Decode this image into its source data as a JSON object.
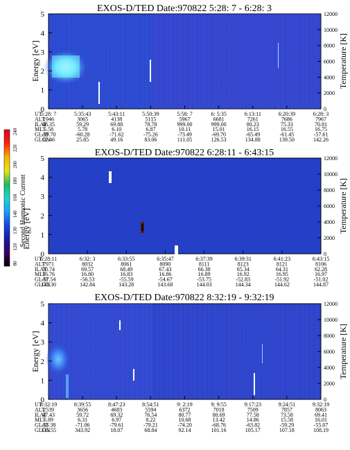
{
  "chart_data": [
    {
      "type": "heatmap",
      "title": "EXOS-D/TED   Date:970822  5:28: 7 - 6:28: 3",
      "ylabel": "Energy [eV]",
      "y2label": "Temperature [K]",
      "ylim": [
        0,
        5
      ],
      "y2lim": [
        0,
        12000
      ],
      "yticks": [
        "0",
        "1",
        "2",
        "3",
        "4",
        "5"
      ],
      "y2ticks": [
        "0",
        "2000",
        "4000",
        "6000",
        "8000",
        "10000",
        "12000"
      ],
      "xticks": [
        "5:28: 7",
        "5:35:43",
        "5:43:11",
        "5:50:39",
        "5:58: 7",
        "6: 5:35",
        "6:13:11",
        "6:20:39",
        "6:28: 3"
      ],
      "table_labels": [
        "UT",
        "ALT",
        "ILAT",
        "MLT",
        "GLAT",
        "GLON"
      ],
      "table": [
        [
          "5:28: 7",
          "5:35:43",
          "5:43:11",
          "5:50:39",
          "5:58: 7",
          "6: 5:35",
          "6:13:11",
          "6:20:39",
          "6:28: 3"
        ],
        [
          "1946",
          "3065",
          "4138",
          "5115",
          "5967",
          "6681",
          "7261",
          "7686",
          "7967"
        ],
        [
          "46.35",
          "59.29",
          "69.88",
          "78.78",
          "999.00",
          "999.00",
          "80.23",
          "75.33",
          "70.81"
        ],
        [
          "5.58",
          "5.78",
          "6.10",
          "6.87",
          "10.11",
          "15.01",
          "16.15",
          "16.55",
          "16.75"
        ],
        [
          "-39.70",
          "-60.28",
          "-71.62",
          "-75.26",
          "-73.49",
          "-69.70",
          "-65.49",
          "-61.45",
          "-57.61"
        ],
        [
          "12.46",
          "25.85",
          "49.16",
          "83.06",
          "111.05",
          "126.53",
          "134.88",
          "139.50",
          "142.26"
        ]
      ],
      "colors": {
        "background": "#2b4fd6",
        "band": "#6ee0ff",
        "streak": "#ffffff"
      }
    },
    {
      "type": "heatmap",
      "title": "EXOS-D/TED   Date:970822  6:28:11 - 6:43:15",
      "ylabel": "Energy [eV]",
      "y2label": "Temperature [K]",
      "ylim": [
        0,
        5
      ],
      "y2lim": [
        0,
        12000
      ],
      "yticks": [
        "0",
        "1",
        "2",
        "3",
        "4",
        "5"
      ],
      "y2ticks": [
        "0",
        "2000",
        "4000",
        "6000",
        "8000",
        "10000",
        "12000"
      ],
      "xticks": [
        "6:28:11",
        "6:32: 3",
        "6:33:55",
        "6:35:47",
        "6:37:39",
        "6:39:31",
        "6:41:23",
        "6:43:15"
      ],
      "table_labels": [
        "UT",
        "ALT",
        "ILAT",
        "MLT",
        "GLAT",
        "GLON"
      ],
      "table": [
        [
          "6:28:11",
          "6:32: 3",
          "6:33:55",
          "6:35:47",
          "6:37:39",
          "6:39:31",
          "6:41:23",
          "6:43:15"
        ],
        [
          "7971",
          "8032",
          "8061",
          "8090",
          "8111",
          "8123",
          "8121",
          "8106"
        ],
        [
          "70.74",
          "69.57",
          "68.49",
          "67.43",
          "66.38",
          "65.34",
          "64.31",
          "62.28"
        ],
        [
          "16.76",
          "16.80",
          "16.83",
          "16.86",
          "16.89",
          "16.92",
          "16.95",
          "16.97"
        ],
        [
          "-57.54",
          "-56.53",
          "-55.59",
          "-54.67",
          "-53.75",
          "-52.83",
          "-51.92",
          "-51.02"
        ],
        [
          "142.30",
          "142.84",
          "143.28",
          "143.68",
          "144.03",
          "144.34",
          "144.62",
          "144.87"
        ]
      ],
      "colors": {
        "background": "#2240c8",
        "streak": "#ffffff",
        "dark_patch": "#5a1a1a"
      }
    },
    {
      "type": "heatmap",
      "title": "EXOS-D/TED   Date:970822  8:32:19 - 9:32:19",
      "ylabel": "Energy [eV]",
      "y2label": "Temperature [K]",
      "ylim": [
        0,
        5
      ],
      "y2lim": [
        0,
        12000
      ],
      "yticks": [
        "0",
        "1",
        "2",
        "3",
        "4",
        "5"
      ],
      "y2ticks": [
        "0",
        "2000",
        "4000",
        "6000",
        "8000",
        "10000",
        "12000"
      ],
      "xticks": [
        "8:32:19",
        "8:39:55",
        "8:47:23",
        "8:54:51",
        "9: 2:19",
        "9: 9:55",
        "9:17:23",
        "9:24:51",
        "9:32:19"
      ],
      "table_labels": [
        "UT",
        "ALT",
        "ILAT",
        "MLT",
        "GLAT",
        "GLON"
      ],
      "table": [
        [
          "8:32:19",
          "8:39:55",
          "8:47:23",
          "8:54:51",
          "9: 2:19",
          "9: 9:55",
          "9:17:23",
          "9:24:51",
          "9:32:19"
        ],
        [
          "2539",
          "3656",
          "4683",
          "5594",
          "6372",
          "7018",
          "7509",
          "7857",
          "8063"
        ],
        [
          "47.43",
          "59.72",
          "69.32",
          "76.54",
          "80.77",
          "80.69",
          "77.58",
          "73.58",
          "69.41"
        ],
        [
          "5.89",
          "6.31",
          "6.97",
          "8.22",
          "10.68",
          "13.42",
          "14.86",
          "15.58",
          "16.01"
        ],
        [
          "-55.38",
          "-71.06",
          "-79.61",
          "-79.21",
          "-74.20",
          "-68.76",
          "-63.82",
          "-59.29",
          "-55.07"
        ],
        [
          "331.55",
          "343.92",
          "18.07",
          "68.84",
          "92.14",
          "101.16",
          "105.17",
          "107.18",
          "108.19"
        ]
      ],
      "colors": {
        "background": "#2e48d0",
        "band": "#4aa8ff",
        "streak": "#ffffff"
      }
    }
  ],
  "colorbar": {
    "label": "Second Harmonic Current",
    "ticks": [
      "80",
      "120",
      "130",
      "140",
      "160",
      "180",
      "200",
      "220",
      "240"
    ],
    "colors": [
      "#000000",
      "#3a0066",
      "#1a1aa0",
      "#1446e6",
      "#15a0ff",
      "#18d8d0",
      "#18c060",
      "#e8e810",
      "#ffb000",
      "#ff2010",
      "#e00020"
    ]
  }
}
